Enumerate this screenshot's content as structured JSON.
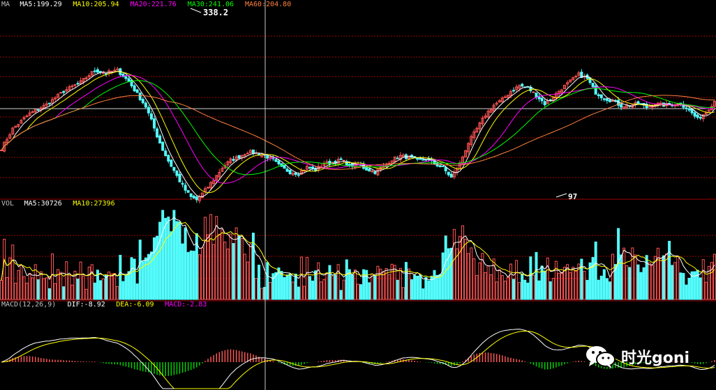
{
  "chart_data": [
    {
      "type": "candlestick",
      "panel": "price",
      "label": "MA",
      "indicators": [
        {
          "name": "MA5",
          "value": "199.29",
          "color": "#ffffff"
        },
        {
          "name": "MA10",
          "value": "205.94",
          "color": "#ffff00"
        },
        {
          "name": "MA20",
          "value": "221.76",
          "color": "#ff00ff"
        },
        {
          "name": "MA30",
          "value": "241.06",
          "color": "#00ff00"
        },
        {
          "name": "MA60",
          "value": "204.80",
          "color": "#ff8040"
        }
      ],
      "annotations": [
        {
          "text": "338.2",
          "kind": "max"
        },
        {
          "text": "97",
          "kind": "min"
        }
      ],
      "anchors": [
        [
          0,
          150
        ],
        [
          4,
          178
        ],
        [
          10,
          200
        ],
        [
          16,
          213
        ],
        [
          22,
          232
        ],
        [
          28,
          245
        ],
        [
          33,
          262
        ],
        [
          37,
          258
        ],
        [
          41,
          262
        ],
        [
          45,
          246
        ],
        [
          48,
          228
        ],
        [
          51,
          210
        ],
        [
          53,
          190
        ],
        [
          55,
          168
        ],
        [
          57,
          148
        ],
        [
          59,
          132
        ],
        [
          61,
          118
        ],
        [
          63,
          103
        ],
        [
          65,
          90
        ],
        [
          67,
          80
        ],
        [
          69,
          76
        ],
        [
          71,
          85
        ],
        [
          73,
          95
        ],
        [
          75,
          105
        ],
        [
          78,
          122
        ],
        [
          81,
          133
        ],
        [
          84,
          138
        ],
        [
          87,
          145
        ],
        [
          90,
          143
        ],
        [
          93,
          140
        ],
        [
          96,
          133
        ],
        [
          99,
          122
        ],
        [
          102,
          116
        ],
        [
          105,
          114
        ],
        [
          108,
          123
        ],
        [
          111,
          119
        ],
        [
          114,
          128
        ],
        [
          117,
          130
        ],
        [
          120,
          133
        ],
        [
          123,
          125
        ],
        [
          126,
          127
        ],
        [
          129,
          120
        ],
        [
          132,
          116
        ],
        [
          135,
          124
        ],
        [
          138,
          134
        ],
        [
          141,
          139
        ],
        [
          144,
          137
        ],
        [
          147,
          132
        ],
        [
          150,
          135
        ],
        [
          153,
          128
        ],
        [
          156,
          122
        ],
        [
          159,
          108
        ],
        [
          162,
          128
        ],
        [
          165,
          158
        ],
        [
          168,
          178
        ],
        [
          171,
          198
        ],
        [
          174,
          212
        ],
        [
          177,
          220
        ],
        [
          180,
          232
        ],
        [
          183,
          240
        ],
        [
          186,
          237
        ],
        [
          189,
          226
        ],
        [
          192,
          214
        ],
        [
          195,
          224
        ],
        [
          198,
          236
        ],
        [
          201,
          246
        ],
        [
          204,
          256
        ],
        [
          207,
          250
        ],
        [
          210,
          230
        ],
        [
          213,
          222
        ],
        [
          216,
          218
        ],
        [
          219,
          211
        ],
        [
          222,
          212
        ],
        [
          225,
          214
        ],
        [
          228,
          209
        ],
        [
          231,
          214
        ],
        [
          234,
          212
        ],
        [
          237,
          213
        ],
        [
          240,
          214
        ],
        [
          243,
          205
        ],
        [
          246,
          192
        ],
        [
          249,
          202
        ],
        [
          252,
          218
        ]
      ],
      "ylim": [
        80,
        345
      ]
    },
    {
      "type": "bar",
      "panel": "volume",
      "label": "VOL",
      "indicators": [
        {
          "name": "MA5",
          "value": "30726",
          "color": "#ffffff"
        },
        {
          "name": "MA10",
          "value": "27396",
          "color": "#ffff00"
        }
      ]
    },
    {
      "type": "line",
      "panel": "macd",
      "indicators": [
        {
          "name": "MACD(12,26,9)",
          "value": "",
          "color": "#c0c0c0"
        },
        {
          "name": "DIF",
          "value": "-8.92",
          "color": "#ffffff"
        },
        {
          "name": "DEA",
          "value": "-6.09",
          "color": "#ffff00"
        },
        {
          "name": "MACD",
          "value": "-2.83",
          "color": "#ff00ff"
        }
      ]
    }
  ],
  "watermark": {
    "text": "时光goni",
    "icon": "wechat-icon"
  },
  "colors": {
    "up": "#ff5555",
    "down": "#54fcfc",
    "grid": "#a00000",
    "crosshair": "#c8c8c8"
  }
}
